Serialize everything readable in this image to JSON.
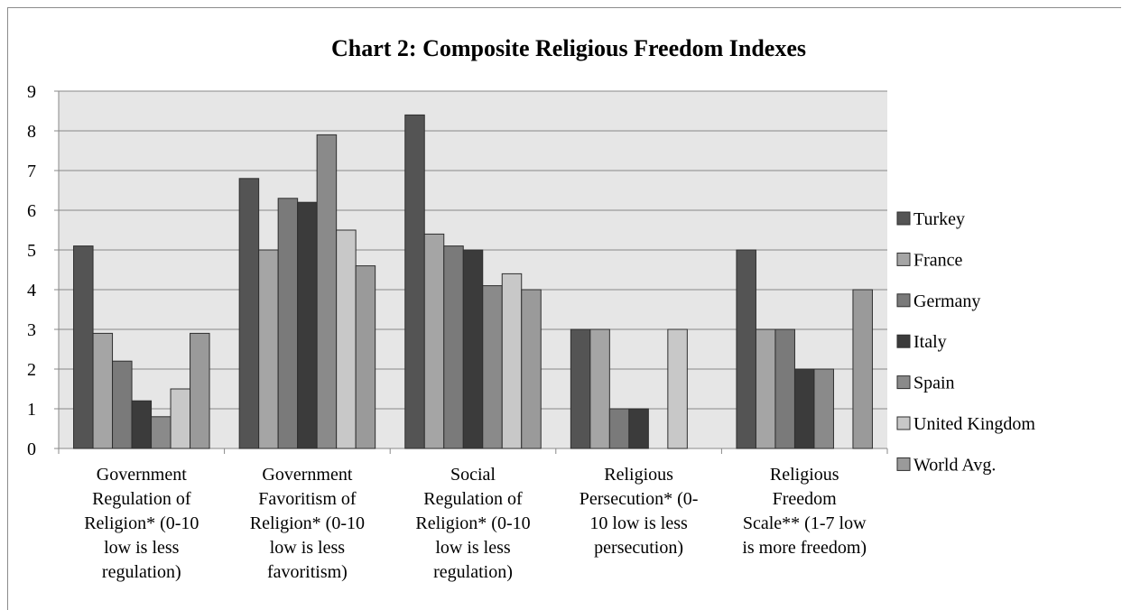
{
  "chart_data": {
    "type": "bar",
    "title": "Chart 2: Composite Religious Freedom Indexes",
    "xlabel": "",
    "ylabel": "",
    "ylim": [
      0,
      9
    ],
    "yticks": [
      "0",
      "1",
      "2",
      "3",
      "4",
      "5",
      "6",
      "7",
      "8",
      "9"
    ],
    "grid": true,
    "legend_position": "right",
    "categories": [
      [
        "Government",
        "Regulation of",
        "Religion* (0-10",
        "low is less",
        "regulation)"
      ],
      [
        "Government",
        "Favoritism of",
        "Religion* (0-10",
        "low is less",
        "favoritism)"
      ],
      [
        "Social",
        "Regulation of",
        "Religion* (0-10",
        "low is less",
        "regulation)"
      ],
      [
        "Religious",
        "Persecution* (0-",
        "10 low is less",
        "persecution)"
      ],
      [
        "Religious",
        "Freedom",
        "Scale** (1-7 low",
        "is more freedom)"
      ]
    ],
    "series": [
      {
        "name": "Turkey",
        "color": "#545454",
        "values": [
          5.1,
          6.8,
          8.4,
          3,
          5
        ]
      },
      {
        "name": "France",
        "color": "#a5a5a5",
        "values": [
          2.9,
          5.0,
          5.4,
          3,
          3
        ]
      },
      {
        "name": "Germany",
        "color": "#7a7a7a",
        "values": [
          2.2,
          6.3,
          5.1,
          1,
          3
        ]
      },
      {
        "name": "Italy",
        "color": "#3b3b3b",
        "values": [
          1.2,
          6.2,
          5.0,
          1,
          2
        ]
      },
      {
        "name": "Spain",
        "color": "#8a8a8a",
        "values": [
          0.8,
          7.9,
          4.1,
          0,
          2
        ]
      },
      {
        "name": "United Kingdom",
        "color": "#c8c8c8",
        "values": [
          1.5,
          5.5,
          4.4,
          3,
          0
        ]
      },
      {
        "name": "World Avg.",
        "color": "#9a9a9a",
        "values": [
          2.9,
          4.6,
          4.0,
          0,
          4
        ]
      }
    ],
    "plot_background": "#e6e6e6",
    "gridline_color": "#888888",
    "bar_outline_color": "#2e2e2e"
  }
}
